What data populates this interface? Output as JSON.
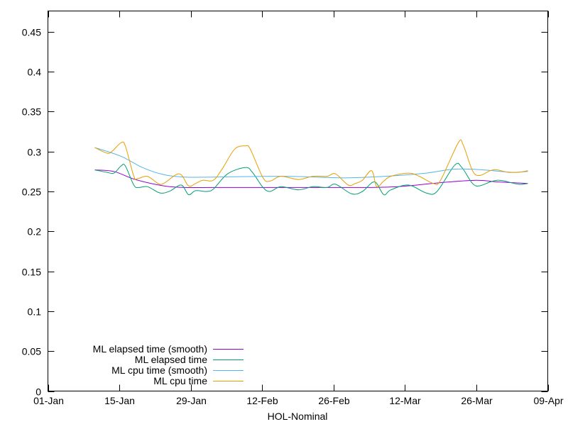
{
  "chart_data": {
    "type": "line",
    "title": "",
    "xlabel": "HOL-Nominal",
    "ylabel": "",
    "x_unit": "days since 01-Jan",
    "xlim": [
      0,
      98
    ],
    "ylim": [
      0,
      0.476
    ],
    "grid": false,
    "legend_position": "bottom-left",
    "x_ticks": [
      {
        "day": 0,
        "label": "01-Jan"
      },
      {
        "day": 14,
        "label": "15-Jan"
      },
      {
        "day": 28,
        "label": "29-Jan"
      },
      {
        "day": 42,
        "label": "12-Feb"
      },
      {
        "day": 56,
        "label": "26-Feb"
      },
      {
        "day": 70,
        "label": "12-Mar"
      },
      {
        "day": 84,
        "label": "26-Mar"
      },
      {
        "day": 98,
        "label": "09-Apr"
      }
    ],
    "y_ticks": [
      {
        "value": 0,
        "label": "0"
      },
      {
        "value": 0.05,
        "label": "0.05"
      },
      {
        "value": 0.1,
        "label": "0.1"
      },
      {
        "value": 0.15,
        "label": "0.15"
      },
      {
        "value": 0.2,
        "label": "0.2"
      },
      {
        "value": 0.25,
        "label": "0.25"
      },
      {
        "value": 0.3,
        "label": "0.3"
      },
      {
        "value": 0.35,
        "label": "0.35"
      },
      {
        "value": 0.4,
        "label": "0.4"
      },
      {
        "value": 0.45,
        "label": "0.45"
      }
    ],
    "series": [
      {
        "name": "ML elapsed time (smooth)",
        "color": "#9400d3",
        "points": [
          [
            9.19,
            0.277
          ],
          [
            12.95,
            0.275
          ],
          [
            17.12,
            0.265
          ],
          [
            22.69,
            0.257
          ],
          [
            26.87,
            0.255
          ],
          [
            32.43,
            0.255
          ],
          [
            46.35,
            0.255
          ],
          [
            60.27,
            0.255
          ],
          [
            68.62,
            0.256
          ],
          [
            76.98,
            0.261
          ],
          [
            83.94,
            0.264
          ],
          [
            88.1,
            0.262
          ],
          [
            94.1,
            0.26
          ]
        ]
      },
      {
        "name": "ML elapsed time",
        "color": "#009e73",
        "points": [
          [
            9.19,
            0.277
          ],
          [
            11.55,
            0.274
          ],
          [
            12.95,
            0.273
          ],
          [
            14.34,
            0.282
          ],
          [
            15.17,
            0.282
          ],
          [
            16.84,
            0.258
          ],
          [
            17.82,
            0.255
          ],
          [
            19.49,
            0.256
          ],
          [
            21.58,
            0.249
          ],
          [
            22.69,
            0.248
          ],
          [
            24.08,
            0.251
          ],
          [
            26.17,
            0.258
          ],
          [
            27.56,
            0.246
          ],
          [
            28.95,
            0.251
          ],
          [
            31.04,
            0.25
          ],
          [
            32.43,
            0.253
          ],
          [
            35.22,
            0.272
          ],
          [
            38.7,
            0.28
          ],
          [
            40.09,
            0.274
          ],
          [
            42.18,
            0.255
          ],
          [
            43.57,
            0.25
          ],
          [
            45.66,
            0.256
          ],
          [
            49.14,
            0.252
          ],
          [
            51.92,
            0.256
          ],
          [
            54.7,
            0.255
          ],
          [
            56.38,
            0.259
          ],
          [
            59.58,
            0.247
          ],
          [
            61.66,
            0.25
          ],
          [
            64.03,
            0.262
          ],
          [
            65.84,
            0.246
          ],
          [
            67.23,
            0.252
          ],
          [
            70.71,
            0.258
          ],
          [
            74.19,
            0.248
          ],
          [
            76.28,
            0.25
          ],
          [
            79.76,
            0.283
          ],
          [
            81.15,
            0.28
          ],
          [
            83.24,
            0.26
          ],
          [
            84.63,
            0.257
          ],
          [
            86.72,
            0.262
          ],
          [
            88.1,
            0.264
          ],
          [
            89.5,
            0.263
          ],
          [
            92.28,
            0.259
          ],
          [
            94.1,
            0.26
          ]
        ]
      },
      {
        "name": "ML cpu time (smooth)",
        "color": "#56b4e9",
        "points": [
          [
            9.19,
            0.305
          ],
          [
            14.34,
            0.294
          ],
          [
            18.51,
            0.28
          ],
          [
            22.69,
            0.271
          ],
          [
            26.87,
            0.268
          ],
          [
            32.43,
            0.268
          ],
          [
            46.35,
            0.269
          ],
          [
            57.49,
            0.267
          ],
          [
            63.06,
            0.268
          ],
          [
            68.62,
            0.27
          ],
          [
            74.19,
            0.273
          ],
          [
            79.76,
            0.278
          ],
          [
            85.33,
            0.277
          ],
          [
            90.89,
            0.274
          ],
          [
            94.1,
            0.275
          ]
        ]
      },
      {
        "name": "ML cpu time",
        "color": "#e69f00",
        "points": [
          [
            9.19,
            0.305
          ],
          [
            11.55,
            0.298
          ],
          [
            12.53,
            0.3
          ],
          [
            14.34,
            0.311
          ],
          [
            15.17,
            0.307
          ],
          [
            16.84,
            0.269
          ],
          [
            17.54,
            0.266
          ],
          [
            19.49,
            0.269
          ],
          [
            21.58,
            0.26
          ],
          [
            22.69,
            0.26
          ],
          [
            25.75,
            0.272
          ],
          [
            27.56,
            0.257
          ],
          [
            28.95,
            0.26
          ],
          [
            30.34,
            0.264
          ],
          [
            32.43,
            0.264
          ],
          [
            34.24,
            0.279
          ],
          [
            36.61,
            0.303
          ],
          [
            38.7,
            0.307
          ],
          [
            39.67,
            0.303
          ],
          [
            42.18,
            0.267
          ],
          [
            43.57,
            0.263
          ],
          [
            45.66,
            0.269
          ],
          [
            49.14,
            0.265
          ],
          [
            51.92,
            0.269
          ],
          [
            54.7,
            0.269
          ],
          [
            56.38,
            0.272
          ],
          [
            58.88,
            0.258
          ],
          [
            60.27,
            0.26
          ],
          [
            61.66,
            0.264
          ],
          [
            63.47,
            0.276
          ],
          [
            64.45,
            0.256
          ],
          [
            65.84,
            0.263
          ],
          [
            67.23,
            0.269
          ],
          [
            70.71,
            0.273
          ],
          [
            72.8,
            0.269
          ],
          [
            75.58,
            0.26
          ],
          [
            76.98,
            0.264
          ],
          [
            80.46,
            0.311
          ],
          [
            81.43,
            0.308
          ],
          [
            83.24,
            0.276
          ],
          [
            84.63,
            0.27
          ],
          [
            86.72,
            0.276
          ],
          [
            88.1,
            0.277
          ],
          [
            90.2,
            0.274
          ],
          [
            92.28,
            0.274
          ],
          [
            94.1,
            0.276
          ]
        ]
      }
    ]
  }
}
